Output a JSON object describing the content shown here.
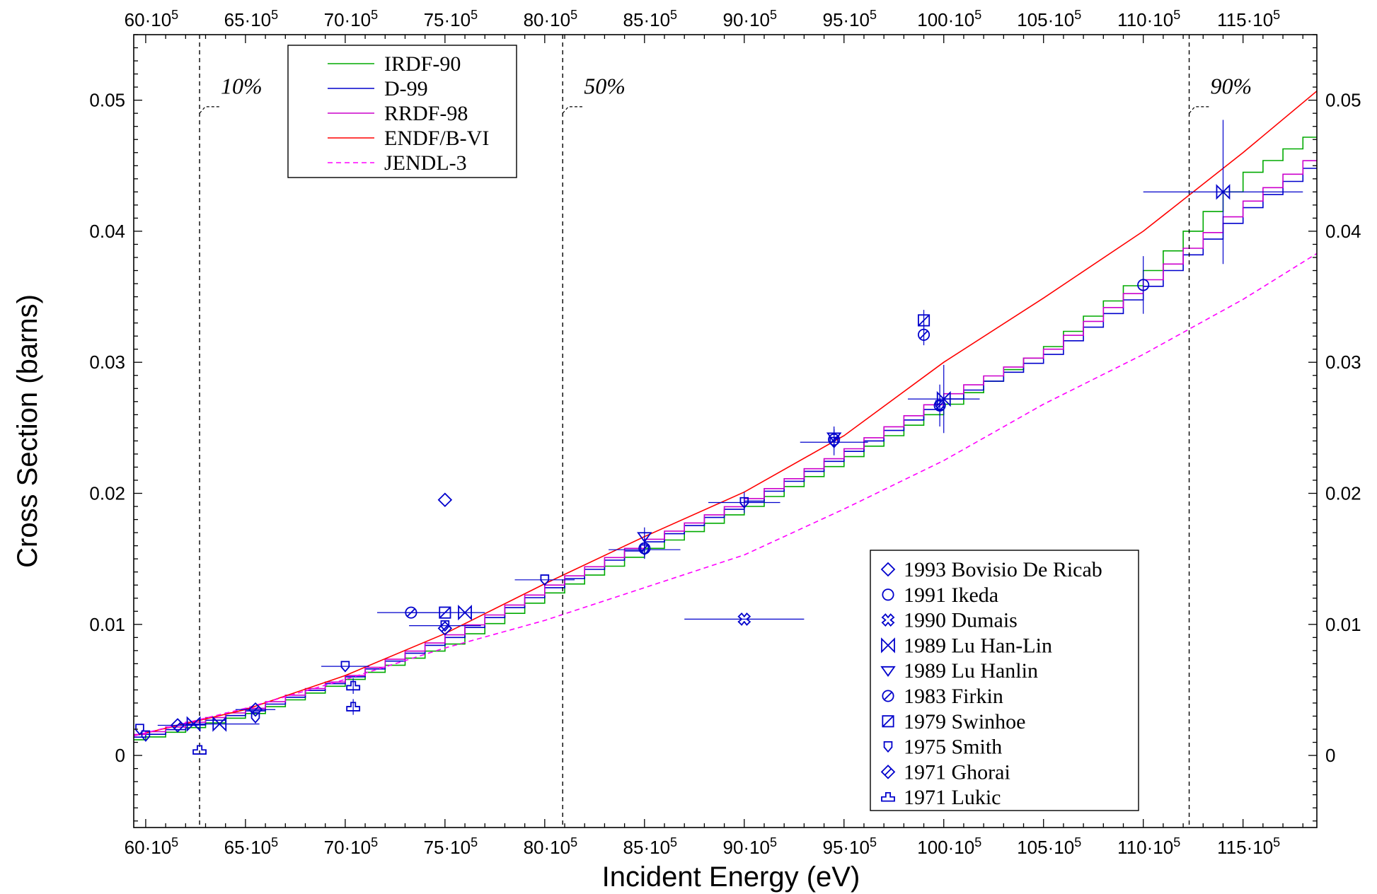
{
  "chart_data": {
    "type": "line",
    "xlabel": "Incident Energy (eV)",
    "ylabel": "Cross Section (barns)",
    "xlim": [
      5940000,
      11870000
    ],
    "ylim": [
      -0.0055,
      0.055
    ],
    "x_ticks": [
      6000000,
      6500000,
      7000000,
      7500000,
      8000000,
      8500000,
      9000000,
      9500000,
      10000000,
      10500000,
      11000000,
      11500000
    ],
    "x_tick_labels": [
      {
        "mant": "60·10",
        "exp": "5"
      },
      {
        "mant": "65·10",
        "exp": "5"
      },
      {
        "mant": "70·10",
        "exp": "5"
      },
      {
        "mant": "75·10",
        "exp": "5"
      },
      {
        "mant": "80·10",
        "exp": "5"
      },
      {
        "mant": "85·10",
        "exp": "5"
      },
      {
        "mant": "90·10",
        "exp": "5"
      },
      {
        "mant": "95·10",
        "exp": "5"
      },
      {
        "mant": "100·10",
        "exp": "5"
      },
      {
        "mant": "105·10",
        "exp": "5"
      },
      {
        "mant": "110·10",
        "exp": "5"
      },
      {
        "mant": "115·10",
        "exp": "5"
      }
    ],
    "y_ticks": [
      0,
      0.01,
      0.02,
      0.03,
      0.04,
      0.05
    ],
    "y_tick_labels": [
      "0",
      "0.01",
      "0.02",
      "0.03",
      "0.04",
      "0.05"
    ],
    "percentile_lines": [
      {
        "x": 6270000,
        "label": "10%"
      },
      {
        "x": 8090000,
        "label": "50%"
      },
      {
        "x": 11230000,
        "label": "90%"
      }
    ],
    "grid": false,
    "legend_lines_position": "top-left",
    "legend_points_position": "bottom-right",
    "series": [
      {
        "name": "IRDF-90",
        "style": "step",
        "color": "#00aa00",
        "x": [
          5940000,
          6500000,
          7000000,
          7500000,
          8000000,
          8500000,
          9000000,
          9500000,
          10000000,
          10500000,
          11000000,
          11500000,
          11870000
        ],
        "y": [
          0.0012,
          0.0032,
          0.0058,
          0.0085,
          0.0124,
          0.0158,
          0.019,
          0.0228,
          0.0268,
          0.0312,
          0.037,
          0.0445,
          0.0478
        ]
      },
      {
        "name": "D-99",
        "style": "step",
        "color": "#0000cc",
        "x": [
          5940000,
          6500000,
          7000000,
          7500000,
          8000000,
          8500000,
          9000000,
          9500000,
          10000000,
          10500000,
          11000000,
          11500000,
          11870000
        ],
        "y": [
          0.0014,
          0.0034,
          0.006,
          0.009,
          0.0128,
          0.0163,
          0.0194,
          0.0232,
          0.0272,
          0.0306,
          0.0358,
          0.0418,
          0.0455
        ]
      },
      {
        "name": "RRDF-98",
        "style": "step",
        "color": "#cc00cc",
        "x": [
          5940000,
          6500000,
          7000000,
          7500000,
          8000000,
          8500000,
          9000000,
          9500000,
          10000000,
          10500000,
          11000000,
          11500000,
          11870000
        ],
        "y": [
          0.0016,
          0.0036,
          0.0061,
          0.0092,
          0.013,
          0.0165,
          0.0196,
          0.0234,
          0.0276,
          0.031,
          0.0363,
          0.0423,
          0.0461
        ]
      },
      {
        "name": "ENDF/B-VI",
        "style": "line",
        "color": "#ff0000",
        "x": [
          5940000,
          6500000,
          7000000,
          7500000,
          8000000,
          8500000,
          9000000,
          9500000,
          10000000,
          10500000,
          11000000,
          11500000,
          11870000
        ],
        "y": [
          0.0015,
          0.0035,
          0.0061,
          0.0093,
          0.0131,
          0.0167,
          0.0201,
          0.0244,
          0.03,
          0.0349,
          0.04,
          0.046,
          0.0507
        ]
      },
      {
        "name": "JENDL-3",
        "style": "dashed",
        "color": "#ff00ff",
        "x": [
          5940000,
          6500000,
          7000000,
          7500000,
          8000000,
          8500000,
          9000000,
          9500000,
          10000000,
          10500000,
          11000000,
          11500000,
          11870000
        ],
        "y": [
          0.0015,
          0.0036,
          0.0058,
          0.0082,
          0.0103,
          0.0128,
          0.0153,
          0.0188,
          0.0225,
          0.0268,
          0.0306,
          0.0348,
          0.0383
        ]
      }
    ],
    "points": [
      {
        "name": "1993 Bovisio De Ricab",
        "marker": "diamond",
        "data": [
          [
            7500000,
            0.0195,
            0,
            0,
            0
          ]
        ]
      },
      {
        "name": "1991 Ikeda",
        "marker": "circle",
        "data": [
          [
            11000000,
            0.0359,
            0,
            0.0022,
            0
          ]
        ]
      },
      {
        "name": "1990 Dumais",
        "marker": "x-circle",
        "data": [
          [
            9000000,
            0.0104,
            300000,
            0,
            0
          ]
        ]
      },
      {
        "name": "1989 Lu Han-Lin",
        "marker": "bowtie",
        "data": [
          [
            6240000,
            0.0024,
            0,
            0,
            0
          ],
          [
            6370000,
            0.0024,
            200000,
            0,
            0
          ],
          [
            7600000,
            0.0109,
            0,
            0,
            0
          ],
          [
            10000000,
            0.0272,
            180000,
            0.0026,
            0
          ],
          [
            11400000,
            0.043,
            400000,
            0.0055,
            0
          ]
        ]
      },
      {
        "name": "1989 Lu Hanlin",
        "marker": "tri-down",
        "data": [
          [
            8500000,
            0.0167,
            0,
            0.0007,
            0
          ],
          [
            9450000,
            0.0243,
            0,
            0.0008,
            0
          ]
        ]
      },
      {
        "name": "1983 Firkin",
        "marker": "circle-slash",
        "data": [
          [
            7330000,
            0.0109,
            170000,
            0,
            0
          ],
          [
            8500000,
            0.0158,
            0,
            0,
            0
          ],
          [
            9450000,
            0.0241,
            0,
            0,
            0
          ],
          [
            9900000,
            0.0321,
            0,
            0.0008,
            0
          ],
          [
            9980000,
            0.0267,
            0,
            0.0008,
            0
          ]
        ]
      },
      {
        "name": "1979 Swinhoe",
        "marker": "square-slash",
        "data": [
          [
            7500000,
            0.0109,
            200000,
            0,
            0
          ],
          [
            9900000,
            0.0332,
            0,
            0.0008,
            0
          ]
        ]
      },
      {
        "name": "1975 Smith",
        "marker": "shield",
        "data": [
          [
            5970000,
            0.002,
            0,
            0,
            0
          ],
          [
            6000000,
            0.0015,
            0,
            0,
            0
          ],
          [
            6550000,
            0.0029,
            0,
            0,
            0
          ],
          [
            7000000,
            0.0068,
            120000,
            0,
            0
          ],
          [
            7500000,
            0.0099,
            180000,
            0,
            0
          ],
          [
            8000000,
            0.0134,
            150000,
            0,
            0
          ],
          [
            8500000,
            0.0157,
            180000,
            0.0007,
            0
          ],
          [
            9000000,
            0.0193,
            180000,
            0.0008,
            0
          ],
          [
            9450000,
            0.0239,
            170000,
            0.001,
            0
          ],
          [
            9980000,
            0.0267,
            0,
            0.0016,
            0
          ]
        ]
      },
      {
        "name": "1971 Ghorai",
        "marker": "diamond-slash",
        "data": [
          [
            6160000,
            0.0023,
            100000,
            0,
            0
          ],
          [
            6550000,
            0.0035,
            100000,
            0,
            0
          ],
          [
            7500000,
            0.0097,
            0,
            0,
            0
          ]
        ]
      },
      {
        "name": "1971 Lukic",
        "marker": "lukic",
        "data": [
          [
            6270000,
            0.0004,
            0,
            0,
            0
          ],
          [
            7040000,
            0.0037,
            0,
            0.0006,
            0
          ],
          [
            7040000,
            0.0053,
            0,
            0.0006,
            0
          ]
        ]
      }
    ]
  }
}
